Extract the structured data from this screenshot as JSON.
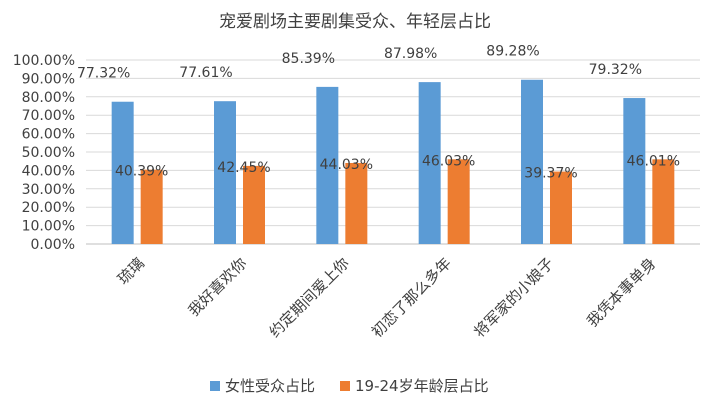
{
  "chart_data": {
    "type": "bar",
    "title": "宠爱剧场主要剧集受众、年轻层占比",
    "categories": [
      "琉璃",
      "我好喜欢你",
      "约定期间爱上你",
      "初恋了那么多年",
      "将军家的小娘子",
      "我凭本事单身"
    ],
    "series": [
      {
        "name": "女性受众占比",
        "color": "#5b9bd5",
        "values": [
          77.32,
          77.61,
          85.39,
          87.98,
          89.28,
          79.32
        ],
        "labels": [
          "77.32%",
          "77.61%",
          "85.39%",
          "87.98%",
          "89.28%",
          "79.32%"
        ]
      },
      {
        "name": "19-24岁年龄层占比",
        "color": "#ed7d31",
        "values": [
          40.39,
          42.45,
          44.03,
          46.03,
          39.37,
          46.01
        ],
        "labels": [
          "40.39%",
          "42.45%",
          "44.03%",
          "46.03%",
          "39.37%",
          "46.01%"
        ]
      }
    ],
    "ylim": [
      0,
      100
    ],
    "yticks": [
      "0.00%",
      "10.00%",
      "20.00%",
      "30.00%",
      "40.00%",
      "50.00%",
      "60.00%",
      "70.00%",
      "80.00%",
      "90.00%",
      "100.00%"
    ],
    "grid": true,
    "legend": "bottom",
    "xlabel": "",
    "ylabel": ""
  }
}
